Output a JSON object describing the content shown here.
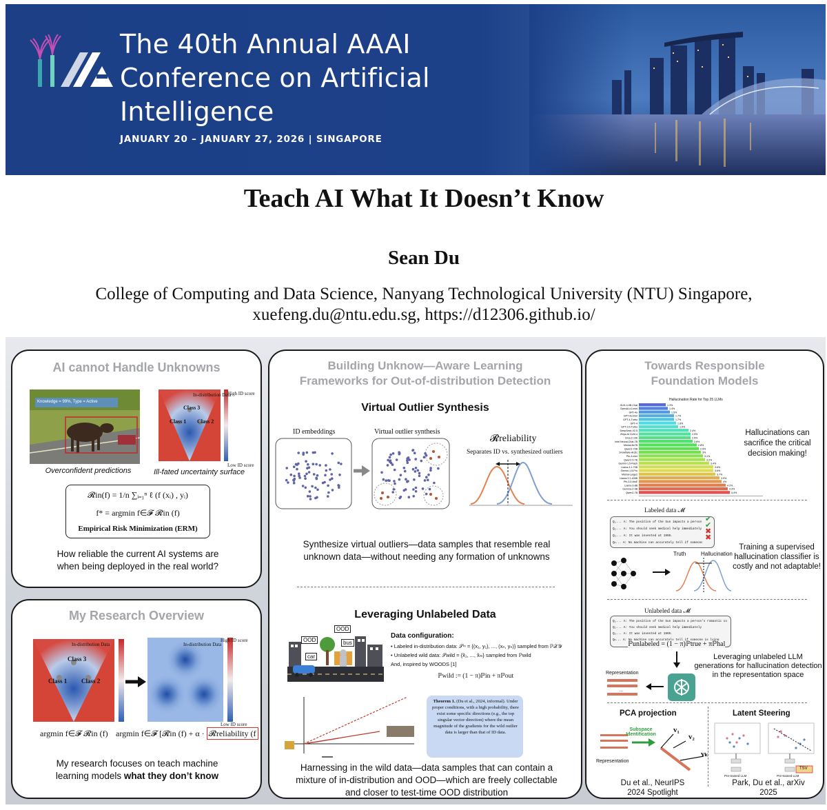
{
  "banner": {
    "title": "The 40th Annual AAAI Conference on Artificial Intelligence",
    "dates": "JANUARY 20 – JANUARY 27, 2026 | SINGAPORE"
  },
  "paper": {
    "title": "Teach AI What It Doesn’t Know",
    "author": "Sean Du",
    "affiliation_line1": "College of Computing and Data Science, Nanyang Technological University (NTU) Singapore,",
    "affiliation_line2": "xuefeng.du@ntu.edu.sg, https://d12306.github.io/"
  },
  "panel_unknowns": {
    "heading": "AI cannot Handle Unknowns",
    "image_caption_left": "Overconfident predictions",
    "image_caption_right": "Ill-fated uncertainty surface",
    "photo_label": "Knowledge = 99%, Type = Active",
    "surface_legend": "In-distribution Data",
    "surface_high": "High ID score",
    "surface_low": "Low ID score",
    "class1": "Class 1",
    "class2": "Class 2",
    "class3": "Class 3",
    "erm_eq1": "𝓡in(f) = 1/n ∑ᵢ₌₁ⁿ ℓ (f (xᵢ) , yᵢ)",
    "erm_eq2": "f* = argmin f∈𝓕 𝓡in (f)",
    "erm_label": "Empirical Risk Minimization (ERM)",
    "question": "How reliable the current AI systems are when being deployed in the real world?"
  },
  "panel_overview": {
    "heading": "My Research Overview",
    "class1": "Class 1",
    "class2": "Class 2",
    "class3": "Class 3",
    "legend": "In-distribution Data",
    "high": "High ID score",
    "low": "Low ID score",
    "eq_left": "argmin f∈𝓕 𝓡in (f)",
    "eq_right_prefix": "argmin f∈𝓕 [𝓡in (f) + α ·",
    "eq_right_box": "𝓡reliability (f",
    "summary_plain": "My research focuses on teach machine learning models ",
    "summary_bold": "what they don’t know"
  },
  "panel_ood": {
    "heading_line1": "Building Unknow—Aware Learning",
    "heading_line2": "Frameworks for Out-of-distribution Detection",
    "vos_title": "Virtual Outlier Synthesis",
    "id_embeddings": "ID embeddings",
    "virtual_outlier": "Virtual outlier synthesis",
    "r_reliability": "𝓡reliability",
    "separates": "Separates ID vs. synthesized outliers",
    "vos_caption": "Synthesize virtual outliers—data samples that resemble real unknown data—without needing any formation of unknowns",
    "unlabeled_title": "Leveraging Unlabeled Data",
    "street_labels": [
      "OOD",
      "OOD",
      "car",
      "bus"
    ],
    "data_config_title": "Data configuration:",
    "data_config_1": "• Labeled in-distribution data: 𝒮ⁱⁿ = {(x₁, y₁), ..., (xₙ, yₙ)} sampled from ℙ𝒳𝒴",
    "data_config_2": "• Unlabeled wild data: 𝒮wild = {x̃₁, ..., x̃ₘ} sampled from ℙwild",
    "data_config_3": "And, inspired by WOODS [1]",
    "data_config_eq": "ℙwild := (1 − π)ℙin + πℙout",
    "theorem_title": "Theorem 1.",
    "theorem_body": "(Du et al., 2024, informal). Under proper conditions, with a high probability, there exist some specific directions (e.g., the top singular vector direction) where the mean magnitude of the gradients for the wild outlier data is larger than that of ID data.",
    "unlabeled_caption": "Harnessing in the wild data—data samples that can contain a mixture of in-distribution and OOD—which are freely collectable and closer to test-time OOD distribution"
  },
  "panel_foundation": {
    "heading_line1": "Towards Responsible",
    "heading_line2": "Foundation Models",
    "hall_chart_title": "Hallucination Rate for Top 25 LLMs",
    "hall_note": "Hallucinations can sacrifice the critical decision making!",
    "labeled_data": "Labeled data 𝓜",
    "qa_lines": [
      "Q₁... A: The position of the Sun impacts a person's romantic compatibility with other people",
      "Q₂... A: You should seek medical help immediately",
      "Q₃... A: It was invented at 1995.",
      "Qₙ... A: No machine can accurately tell if someone is lying"
    ],
    "truth": "Truth",
    "hallucination": "Hallucination",
    "training_note": "Training a supervised hallucination classifier is costly and not adaptable!",
    "unlabeled_data": "Unlabeled data 𝓜",
    "unlabeled_eq": "ℙunlabeled = (1 − π)ℙtrue + πℙhal",
    "representation": "Representation",
    "leveraging_note": "Leveraging unlabeled LLM generations for hallucination detection in the representation space",
    "pca_title": "PCA projection",
    "subspace": "Subspace Identification",
    "v1": "v₁",
    "v2": "v₂",
    "vk": "vₖ",
    "latent_title": "Latent Steering",
    "tsv": "TSV",
    "pretrained_llm": "Pre-trained LLM",
    "cite_left_1": "Du et al., NeurIPS",
    "cite_left_2": "2024 Spotlight",
    "cite_right_1": "Park, Du et al., arXiv",
    "cite_right_2": "2025"
  },
  "chart_data": {
    "type": "bar",
    "title": "Hallucination Rate for Top 25 LLMs",
    "orientation": "horizontal",
    "categories": [
      "GLM-4-9B-Chat",
      "OpenAI-o1-mini",
      "GPT-4o",
      "GPT-4o-mini",
      "GPT-4-Turbo",
      "GPT-4",
      "GPT-3.5-Turbo",
      "DeepSeek-V2.5",
      "Zhipu AI GLM-4",
      "Orca-2-13b",
      "Intel Neural-Chat-7B",
      "Mixtral-8x7B",
      "Qwen2-72B",
      "Snowflake-Arctic",
      "Phi-3-mini",
      "Qwen2.5-7B",
      "Gemini-1.5-Flash",
      "Llama-3.1-70B",
      "Gemini-1.5-Pro",
      "Mistral-Large2",
      "Llama-3.1-405B",
      "Phi-3.5-MoE",
      "Llama-3-8B",
      "Gemma-2-9B",
      "Qwen2-7B"
    ],
    "values": [
      1.3,
      1.4,
      1.5,
      1.7,
      1.7,
      1.8,
      1.9,
      2.4,
      2.5,
      2.5,
      2.6,
      2.8,
      2.9,
      3.0,
      3.1,
      3.2,
      3.4,
      3.6,
      3.6,
      3.7,
      3.9,
      4.0,
      4.2,
      4.3,
      4.4
    ],
    "xlim": [
      0,
      6
    ]
  }
}
